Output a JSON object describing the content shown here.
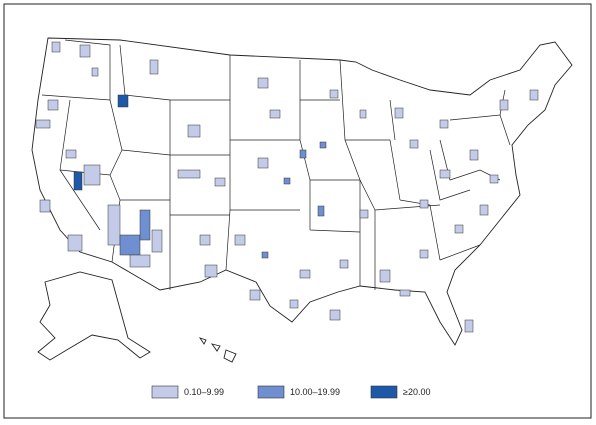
{
  "legend": {
    "items": [
      {
        "label": "0.10–9.99",
        "color": "#c3cbe9"
      },
      {
        "label": "10.00–19.99",
        "color": "#6f8fd0"
      },
      {
        "label": "≥20.00",
        "color": "#1d59a8"
      }
    ]
  }
}
